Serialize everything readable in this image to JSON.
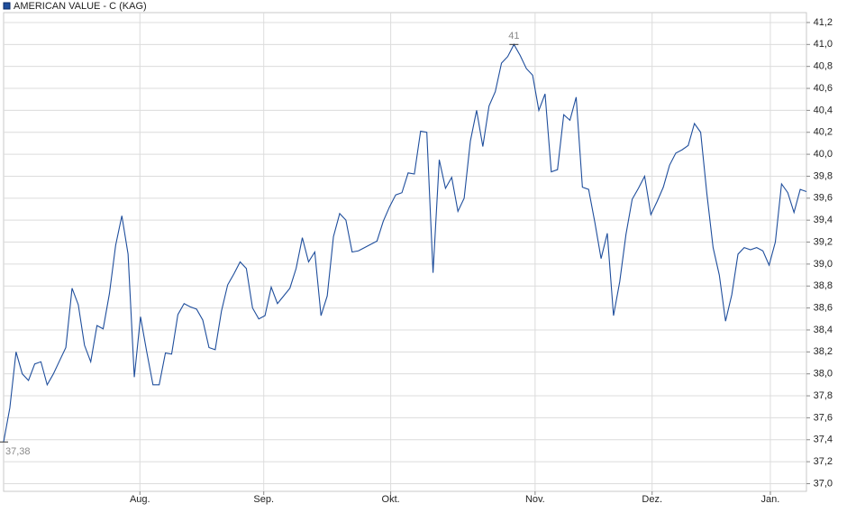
{
  "chart_data": {
    "type": "line",
    "series": [
      {
        "name": "AMERICAN VALUE - C (KAG)",
        "color": "#1f4e9c",
        "values": [
          37.38,
          37.69,
          38.2,
          38.0,
          37.94,
          38.09,
          38.11,
          37.9,
          38.0,
          38.12,
          38.24,
          38.78,
          38.63,
          38.26,
          38.11,
          38.44,
          38.41,
          38.73,
          39.17,
          39.44,
          39.09,
          37.97,
          38.52,
          38.2,
          37.9,
          37.9,
          38.19,
          38.18,
          38.54,
          38.64,
          38.61,
          38.59,
          38.49,
          38.24,
          38.22,
          38.57,
          38.81,
          38.91,
          39.02,
          38.96,
          38.6,
          38.5,
          38.53,
          38.79,
          38.64,
          38.71,
          38.78,
          38.96,
          39.24,
          39.02,
          39.11,
          38.53,
          38.71,
          39.25,
          39.46,
          39.4,
          39.11,
          39.12,
          39.15,
          39.18,
          39.21,
          39.39,
          39.52,
          39.63,
          39.65,
          39.83,
          39.82,
          40.21,
          40.2,
          38.92,
          39.95,
          39.69,
          39.79,
          39.48,
          39.6,
          40.12,
          40.4,
          40.07,
          40.44,
          40.57,
          40.83,
          40.89,
          41.0,
          40.9,
          40.78,
          40.72,
          40.4,
          40.55,
          39.84,
          39.86,
          40.36,
          40.31,
          40.52,
          39.7,
          39.68,
          39.38,
          39.05,
          39.28,
          38.53,
          38.84,
          39.27,
          39.59,
          39.69,
          39.8,
          39.45,
          39.57,
          39.7,
          39.9,
          40.01,
          40.04,
          40.08,
          40.28,
          40.2,
          39.64,
          39.15,
          38.9,
          38.48,
          38.72,
          39.09,
          39.15,
          39.13,
          39.15,
          39.12,
          38.99,
          39.2,
          39.73,
          39.65,
          39.47,
          39.68,
          39.66
        ]
      }
    ],
    "x": [
      0,
      1,
      2,
      3,
      4,
      5,
      6,
      7,
      8,
      9,
      10,
      11,
      12,
      13,
      14,
      15,
      16,
      17,
      18,
      19,
      20,
      21,
      22,
      23,
      24,
      25,
      26,
      27,
      28,
      29,
      30,
      31,
      32,
      33,
      34,
      35,
      36,
      37,
      38,
      39,
      40,
      41,
      42,
      43,
      44,
      45,
      46,
      47,
      48,
      49,
      50,
      51,
      52,
      53,
      54,
      55,
      56,
      57,
      58,
      59,
      60,
      61,
      62,
      63,
      64,
      65,
      66,
      67,
      68,
      69,
      70,
      71,
      72,
      73,
      74,
      75,
      76,
      77,
      78,
      79,
      80,
      81,
      82,
      83,
      84,
      85,
      86,
      87,
      88,
      89,
      90,
      91,
      92,
      93,
      94,
      95,
      96,
      97,
      98,
      99,
      100,
      101,
      102,
      103,
      104,
      105,
      106,
      107,
      108,
      109,
      110,
      111,
      112,
      113,
      114,
      115,
      116,
      117,
      118,
      119,
      120,
      121,
      122,
      123,
      124,
      125,
      126,
      127,
      128,
      129
    ],
    "xlim": [
      0,
      129
    ],
    "xticks": [
      {
        "value": 21.9,
        "label": "Aug."
      },
      {
        "value": 41.8,
        "label": "Sep."
      },
      {
        "value": 62.2,
        "label": "Okt."
      },
      {
        "value": 85.4,
        "label": "Nov."
      },
      {
        "value": 104.2,
        "label": "Dez."
      },
      {
        "value": 123.2,
        "label": "Jan."
      }
    ],
    "ylim": [
      36.93,
      41.29
    ],
    "yticks": [
      {
        "value": 37.0,
        "label": "37,0"
      },
      {
        "value": 37.2,
        "label": "37,2"
      },
      {
        "value": 37.4,
        "label": "37,4"
      },
      {
        "value": 37.6,
        "label": "37,6"
      },
      {
        "value": 37.8,
        "label": "37,8"
      },
      {
        "value": 38.0,
        "label": "38,0"
      },
      {
        "value": 38.2,
        "label": "38,2"
      },
      {
        "value": 38.4,
        "label": "38,4"
      },
      {
        "value": 38.6,
        "label": "38,6"
      },
      {
        "value": 38.8,
        "label": "38,8"
      },
      {
        "value": 39.0,
        "label": "39,0"
      },
      {
        "value": 39.2,
        "label": "39,2"
      },
      {
        "value": 39.4,
        "label": "39,4"
      },
      {
        "value": 39.6,
        "label": "39,6"
      },
      {
        "value": 39.8,
        "label": "39,8"
      },
      {
        "value": 40.0,
        "label": "40,0"
      },
      {
        "value": 40.2,
        "label": "40,2"
      },
      {
        "value": 40.4,
        "label": "40,4"
      },
      {
        "value": 40.6,
        "label": "40,6"
      },
      {
        "value": 40.8,
        "label": "40,8"
      },
      {
        "value": 41.0,
        "label": "41,0"
      },
      {
        "value": 41.2,
        "label": "41,2"
      }
    ],
    "grid": true,
    "annotations": [
      {
        "text": "41",
        "x": 82,
        "y": 41.0
      },
      {
        "text": "37,38",
        "x": 0,
        "y": 37.38
      }
    ]
  }
}
